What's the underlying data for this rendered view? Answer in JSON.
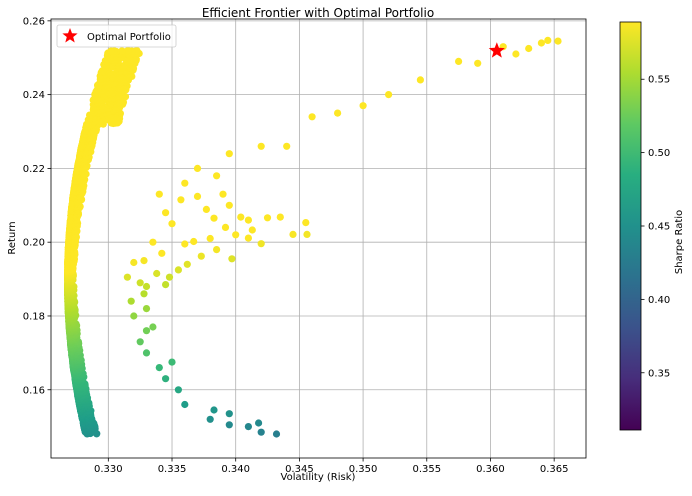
{
  "chart_data": {
    "type": "scatter",
    "title": "Efficient Frontier with Optimal Portfolio",
    "xlabel": "Volatility (Risk)",
    "ylabel": "Return",
    "xlim": [
      0.3255,
      0.3675
    ],
    "ylim": [
      0.1415,
      0.2605
    ],
    "xticks": [
      0.33,
      0.335,
      0.34,
      0.345,
      0.35,
      0.355,
      0.36,
      0.365
    ],
    "xtick_labels": [
      "0.330",
      "0.335",
      "0.340",
      "0.345",
      "0.350",
      "0.355",
      "0.360",
      "0.365"
    ],
    "yticks": [
      0.16,
      0.18,
      0.2,
      0.22,
      0.24,
      0.26
    ],
    "ytick_labels": [
      "0.16",
      "0.18",
      "0.20",
      "0.22",
      "0.24",
      "0.26"
    ],
    "grid": true,
    "legend": {
      "placement": "top-left",
      "entries": [
        {
          "label": "Optimal Portfolio",
          "marker": "star",
          "color": "#ff0000"
        }
      ]
    },
    "colorbar": {
      "label": "Sharpe Ratio",
      "colormap": "viridis",
      "range": [
        0.311,
        0.589
      ],
      "ticks": [
        0.35,
        0.4,
        0.45,
        0.5,
        0.55
      ],
      "tick_labels": [
        "0.35",
        "0.40",
        "0.45",
        "0.50",
        "0.55"
      ]
    },
    "optimal_portfolio": {
      "x": 0.3605,
      "y": 0.2519
    },
    "frontier": {
      "vertex": {
        "x": 0.3268,
        "y": 0.1895
      },
      "upper_branch": [
        [
          0.3268,
          0.1895
        ],
        [
          0.3275,
          0.2
        ],
        [
          0.33,
          0.21
        ],
        [
          0.334,
          0.22
        ],
        [
          0.34,
          0.23
        ],
        [
          0.345,
          0.235
        ],
        [
          0.35,
          0.241
        ],
        [
          0.355,
          0.246
        ],
        [
          0.36,
          0.251
        ],
        [
          0.3655,
          0.2548
        ]
      ],
      "lower_branch": [
        [
          0.3268,
          0.1895
        ],
        [
          0.328,
          0.178
        ],
        [
          0.33,
          0.17
        ],
        [
          0.333,
          0.163
        ],
        [
          0.337,
          0.156
        ],
        [
          0.34,
          0.1515
        ],
        [
          0.3433,
          0.147
        ]
      ]
    },
    "scattered_points": [
      [
        0.3455,
        0.2053
      ],
      [
        0.3456,
        0.2021
      ],
      [
        0.3435,
        0.2068
      ],
      [
        0.3425,
        0.2066
      ],
      [
        0.3413,
        0.2033
      ],
      [
        0.341,
        0.2011
      ],
      [
        0.342,
        0.1996
      ],
      [
        0.34,
        0.202
      ],
      [
        0.3445,
        0.2021
      ],
      [
        0.3383,
        0.2065
      ],
      [
        0.3377,
        0.2089
      ],
      [
        0.337,
        0.2124
      ],
      [
        0.339,
        0.213
      ],
      [
        0.3404,
        0.2068
      ],
      [
        0.3395,
        0.21
      ],
      [
        0.336,
        0.216
      ],
      [
        0.335,
        0.205
      ],
      [
        0.3345,
        0.208
      ],
      [
        0.3357,
        0.2115
      ],
      [
        0.334,
        0.213
      ],
      [
        0.3335,
        0.2
      ],
      [
        0.3342,
        0.197
      ],
      [
        0.3355,
        0.1925
      ],
      [
        0.3362,
        0.194
      ],
      [
        0.3373,
        0.1962
      ],
      [
        0.3385,
        0.198
      ],
      [
        0.3397,
        0.1955
      ],
      [
        0.3367,
        0.2002
      ],
      [
        0.3348,
        0.1905
      ],
      [
        0.3325,
        0.189
      ],
      [
        0.3328,
        0.186
      ],
      [
        0.3318,
        0.184
      ],
      [
        0.333,
        0.182
      ],
      [
        0.332,
        0.18
      ],
      [
        0.3335,
        0.177
      ],
      [
        0.336,
        0.1995
      ],
      [
        0.338,
        0.201
      ],
      [
        0.3392,
        0.204
      ],
      [
        0.341,
        0.206
      ],
      [
        0.3385,
        0.218
      ],
      [
        0.337,
        0.22
      ],
      [
        0.3395,
        0.224
      ],
      [
        0.342,
        0.226
      ],
      [
        0.344,
        0.226
      ],
      [
        0.346,
        0.234
      ],
      [
        0.348,
        0.235
      ],
      [
        0.35,
        0.237
      ],
      [
        0.352,
        0.24
      ],
      [
        0.3545,
        0.244
      ],
      [
        0.3575,
        0.249
      ],
      [
        0.359,
        0.2485
      ],
      [
        0.361,
        0.253
      ],
      [
        0.362,
        0.251
      ],
      [
        0.363,
        0.2525
      ],
      [
        0.364,
        0.254
      ],
      [
        0.3645,
        0.2547
      ],
      [
        0.3653,
        0.2545
      ],
      [
        0.3383,
        0.1545
      ],
      [
        0.3395,
        0.1535
      ],
      [
        0.341,
        0.15
      ],
      [
        0.342,
        0.1485
      ],
      [
        0.3432,
        0.148
      ],
      [
        0.3418,
        0.151
      ],
      [
        0.3395,
        0.1505
      ],
      [
        0.338,
        0.152
      ],
      [
        0.336,
        0.156
      ],
      [
        0.3355,
        0.16
      ],
      [
        0.3345,
        0.163
      ],
      [
        0.334,
        0.166
      ],
      [
        0.335,
        0.1675
      ],
      [
        0.333,
        0.17
      ],
      [
        0.3325,
        0.173
      ],
      [
        0.333,
        0.176
      ],
      [
        0.3315,
        0.1905
      ],
      [
        0.332,
        0.1945
      ],
      [
        0.3328,
        0.195
      ],
      [
        0.3338,
        0.1915
      ],
      [
        0.333,
        0.188
      ],
      [
        0.3345,
        0.1885
      ]
    ]
  }
}
